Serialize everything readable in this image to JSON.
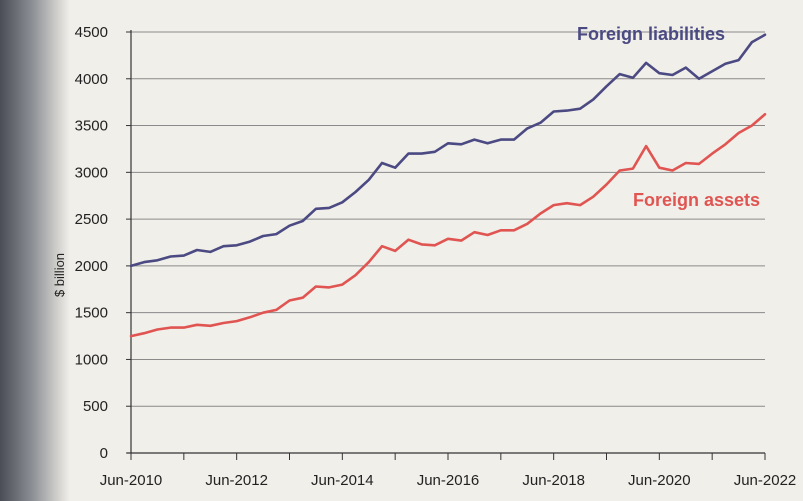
{
  "chart_data": {
    "type": "line",
    "title": "",
    "xlabel": "",
    "ylabel": "$ billion",
    "ylim": [
      0,
      4500
    ],
    "y_ticks": [
      0,
      500,
      1000,
      1500,
      2000,
      2500,
      3000,
      3500,
      4000,
      4500
    ],
    "x_tick_labels": [
      "Jun-2010",
      "Jun-2012",
      "Jun-2014",
      "Jun-2016",
      "Jun-2018",
      "Jun-2020",
      "Jun-2022"
    ],
    "x_tick_positions": [
      0,
      8,
      16,
      24,
      32,
      40,
      48
    ],
    "grid": "horizontal",
    "legend": "inline labels",
    "series": [
      {
        "name": "Foreign liabilities",
        "color": "#4b4a82",
        "values": [
          2000,
          2040,
          2060,
          2100,
          2110,
          2170,
          2150,
          2210,
          2220,
          2260,
          2320,
          2340,
          2430,
          2480,
          2610,
          2620,
          2680,
          2790,
          2920,
          3100,
          3050,
          3200,
          3200,
          3220,
          3310,
          3300,
          3350,
          3310,
          3350,
          3350,
          3470,
          3530,
          3650,
          3660,
          3680,
          3780,
          3920,
          4050,
          4010,
          4170,
          4060,
          4040,
          4120,
          4000,
          4080,
          4160,
          4200,
          4390,
          4470
        ]
      },
      {
        "name": "Foreign assets",
        "color": "#e05552",
        "values": [
          1250,
          1280,
          1320,
          1340,
          1340,
          1370,
          1360,
          1390,
          1410,
          1450,
          1500,
          1530,
          1630,
          1660,
          1780,
          1770,
          1800,
          1900,
          2040,
          2210,
          2160,
          2280,
          2230,
          2220,
          2290,
          2270,
          2360,
          2330,
          2380,
          2380,
          2450,
          2560,
          2650,
          2670,
          2650,
          2740,
          2870,
          3020,
          3040,
          3280,
          3050,
          3020,
          3100,
          3090,
          3200,
          3300,
          3420,
          3500,
          3620
        ]
      }
    ]
  }
}
